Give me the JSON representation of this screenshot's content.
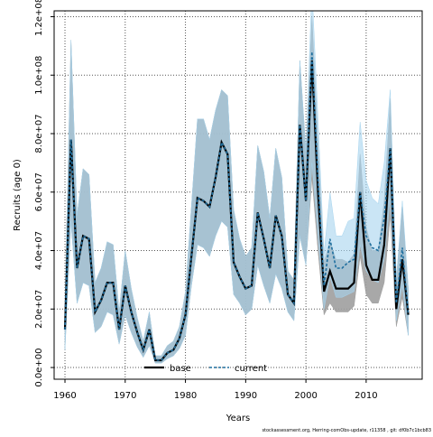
{
  "chart_data": {
    "type": "area",
    "xlabel": "Years",
    "ylabel": "Recruits (age 0)",
    "footer": "stockassessment.org, Herring-comObs-update, r11358 , git: df0b7c1bcb83",
    "xlim": [
      1958.2,
      2019.3
    ],
    "ylim": [
      -4000000,
      122000000
    ],
    "xticks": [
      1960,
      1970,
      1980,
      1990,
      2000,
      2010
    ],
    "yticks": [
      0,
      20000000,
      40000000,
      60000000,
      80000000,
      100000000,
      120000000
    ],
    "ytick_labels": [
      "0.0e+00",
      "2.0e+07",
      "4.0e+07",
      "6.0e+07",
      "8.0e+07",
      "1.0e+08",
      "1.2e+08"
    ],
    "grid": true,
    "legend_position": "bottom-center",
    "x": [
      1960,
      1961,
      1962,
      1963,
      1964,
      1965,
      1966,
      1967,
      1968,
      1969,
      1970,
      1971,
      1972,
      1973,
      1974,
      1975,
      1976,
      1977,
      1978,
      1979,
      1980,
      1981,
      1982,
      1983,
      1984,
      1985,
      1986,
      1987,
      1988,
      1989,
      1990,
      1991,
      1992,
      1993,
      1994,
      1995,
      1996,
      1997,
      1998,
      1999,
      2000,
      2001,
      2002,
      2003,
      2004,
      2005,
      2006,
      2007,
      2008,
      2009,
      2010,
      2011,
      2012,
      2013,
      2014,
      2015,
      2016,
      2017
    ],
    "series": [
      {
        "name": "base",
        "color": "#000000",
        "band_color": "#9e9e9e",
        "values": [
          13000000,
          78000000,
          34000000,
          45000000,
          44000000,
          19000000,
          23000000,
          29000000,
          29000000,
          13000000,
          28000000,
          19000000,
          12000000,
          6000000,
          13000000,
          2500000,
          2500000,
          5000000,
          6000000,
          10000000,
          18000000,
          38000000,
          58000000,
          57000000,
          55000000,
          65000000,
          77000000,
          73000000,
          36000000,
          31000000,
          27000000,
          28000000,
          53000000,
          44000000,
          34000000,
          52000000,
          45000000,
          25000000,
          22000000,
          83000000,
          57000000,
          105000000,
          60000000,
          26000000,
          33000000,
          27000000,
          27000000,
          27000000,
          29000000,
          60000000,
          35000000,
          30000000,
          30000000,
          42000000,
          75000000,
          20000000,
          37000000,
          18000000
        ],
        "lower": [
          6000000,
          50000000,
          22000000,
          29000000,
          28000000,
          12000000,
          14000000,
          19000000,
          18000000,
          8000000,
          18000000,
          12000000,
          7000000,
          3500000,
          7500000,
          1500000,
          1500000,
          3000000,
          4000000,
          6500000,
          11000000,
          28000000,
          42000000,
          41000000,
          38000000,
          45000000,
          50000000,
          48000000,
          25000000,
          22000000,
          18000000,
          20000000,
          35000000,
          28000000,
          22000000,
          32000000,
          27000000,
          19000000,
          16000000,
          45000000,
          35000000,
          65000000,
          40000000,
          18000000,
          22000000,
          19000000,
          19000000,
          19000000,
          21000000,
          38000000,
          25000000,
          22000000,
          22000000,
          29000000,
          52000000,
          14000000,
          24000000,
          11000000
        ],
        "upper": [
          22000000,
          112000000,
          52000000,
          68000000,
          66000000,
          29000000,
          34000000,
          43000000,
          42000000,
          19000000,
          40000000,
          27000000,
          17000000,
          9000000,
          19000000,
          4000000,
          4000000,
          7500000,
          9000000,
          14000000,
          26000000,
          55000000,
          85000000,
          85000000,
          78000000,
          88000000,
          95000000,
          93000000,
          54000000,
          44000000,
          38000000,
          41000000,
          76000000,
          67000000,
          51000000,
          75000000,
          65000000,
          33000000,
          30000000,
          105000000,
          74000000,
          120000000,
          77000000,
          36000000,
          43000000,
          37000000,
          37000000,
          36000000,
          39000000,
          73000000,
          48000000,
          40000000,
          40000000,
          57000000,
          92000000,
          30000000,
          55000000,
          27000000
        ]
      },
      {
        "name": "current",
        "color": "#1f6f9f",
        "band_color": "#a6d4ee",
        "values": [
          13000000,
          78000000,
          34000000,
          45000000,
          44000000,
          19000000,
          23000000,
          29000000,
          29000000,
          13000000,
          28000000,
          19000000,
          12000000,
          6000000,
          13000000,
          2500000,
          2500000,
          5000000,
          6000000,
          10000000,
          18000000,
          38000000,
          58000000,
          57000000,
          55000000,
          65000000,
          77000000,
          73000000,
          36000000,
          31000000,
          27000000,
          28000000,
          53000000,
          44000000,
          34000000,
          52000000,
          45000000,
          25000000,
          22000000,
          83000000,
          57000000,
          108000000,
          64000000,
          28000000,
          44000000,
          34000000,
          34000000,
          36000000,
          37000000,
          60000000,
          45000000,
          41000000,
          40000000,
          51000000,
          75000000,
          22000000,
          41000000,
          18000000
        ],
        "lower": [
          6000000,
          50000000,
          22000000,
          29000000,
          28000000,
          12000000,
          14000000,
          19000000,
          18000000,
          8000000,
          18000000,
          12000000,
          7000000,
          3500000,
          7500000,
          1500000,
          1500000,
          3000000,
          4000000,
          6500000,
          11000000,
          28000000,
          42000000,
          41000000,
          38000000,
          45000000,
          50000000,
          48000000,
          25000000,
          22000000,
          18000000,
          20000000,
          35000000,
          28000000,
          22000000,
          32000000,
          27000000,
          19000000,
          16000000,
          45000000,
          35000000,
          70000000,
          45000000,
          20000000,
          31000000,
          24000000,
          24000000,
          25000000,
          26000000,
          42000000,
          33000000,
          30000000,
          29000000,
          37000000,
          58000000,
          16000000,
          28000000,
          11000000
        ],
        "upper": [
          22000000,
          112000000,
          52000000,
          68000000,
          66000000,
          29000000,
          34000000,
          43000000,
          42000000,
          19000000,
          40000000,
          27000000,
          17000000,
          9000000,
          19000000,
          4000000,
          4000000,
          7500000,
          9000000,
          14000000,
          26000000,
          55000000,
          85000000,
          85000000,
          78000000,
          88000000,
          95000000,
          93000000,
          54000000,
          44000000,
          38000000,
          41000000,
          76000000,
          67000000,
          51000000,
          75000000,
          65000000,
          33000000,
          30000000,
          105000000,
          74000000,
          130000000,
          85000000,
          39000000,
          60000000,
          45000000,
          45000000,
          50000000,
          51000000,
          84000000,
          64000000,
          58000000,
          56000000,
          70000000,
          95000000,
          30000000,
          57000000,
          27000000
        ]
      }
    ]
  }
}
